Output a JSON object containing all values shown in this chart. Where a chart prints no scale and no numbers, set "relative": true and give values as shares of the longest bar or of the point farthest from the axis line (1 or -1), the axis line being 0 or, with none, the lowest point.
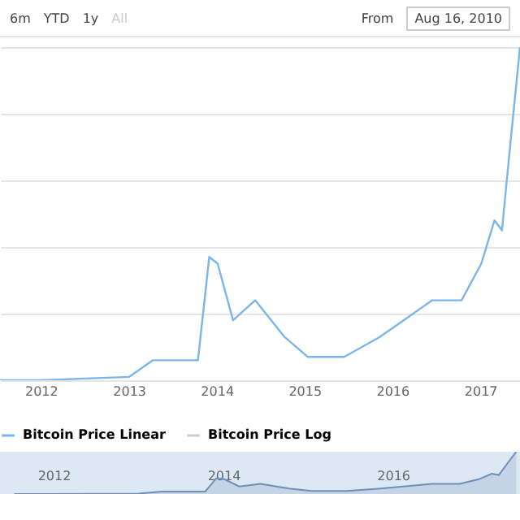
{
  "chart_data": [
    {
      "type": "line",
      "relative": true,
      "grid": "y",
      "legend": "bottom",
      "annotations": [
        "6m",
        "YTD",
        "1y",
        "All",
        "From",
        "Aug 16, 2010"
      ],
      "x": [
        "2011-07-15",
        "2012-01-01",
        "2013-01-01",
        "2013-04-10",
        "2013-10-15",
        "2013-12-01",
        "2014-01-05",
        "2014-03-10",
        "2014-06-10",
        "2014-10-10",
        "2015-01-15",
        "2015-06-15",
        "2015-11-10",
        "2016-06-15",
        "2016-10-15",
        "2017-01-05",
        "2017-03-01",
        "2017-04-01",
        "2017-05-10",
        "2017-06-15"
      ],
      "xlim": [
        "2011-07-15",
        "2017-06-15"
      ],
      "xticks": [
        {
          "value": "2012-01-01",
          "label": "2012"
        },
        {
          "value": "2013-01-01",
          "label": "2013"
        },
        {
          "value": "2014-01-01",
          "label": "2014"
        },
        {
          "value": "2015-01-01",
          "label": "2015"
        },
        {
          "value": "2016-01-01",
          "label": "2016"
        },
        {
          "value": "2017-01-01",
          "label": "2017"
        }
      ],
      "series": [
        {
          "name": "Bitcoin Price Linear",
          "color": "#7cb5ec",
          "values": [
            0,
            0,
            0.01,
            0.06,
            0.06,
            0.37,
            0.35,
            0.18,
            0.24,
            0.13,
            0.07,
            0.07,
            0.13,
            0.24,
            0.24,
            0.35,
            0.48,
            0.45,
            0.74,
            1
          ]
        },
        {
          "name": "Bitcoin Price Log",
          "color": "#cccccc",
          "values": [
            null,
            null,
            null,
            null,
            null,
            null,
            null,
            null,
            null,
            null,
            null,
            null,
            null,
            null,
            null,
            null,
            null,
            null,
            null,
            null
          ]
        }
      ]
    },
    {
      "type": "area",
      "relative": true,
      "tick_labels": "x",
      "x": [
        "2011-07-15",
        "2012-01-01",
        "2013-01-01",
        "2013-04-10",
        "2013-10-15",
        "2013-12-01",
        "2014-01-05",
        "2014-03-10",
        "2014-06-10",
        "2014-10-10",
        "2015-01-15",
        "2015-06-15",
        "2015-11-10",
        "2016-06-15",
        "2016-10-15",
        "2017-01-05",
        "2017-03-01",
        "2017-04-01",
        "2017-05-10",
        "2017-06-15"
      ],
      "xlim": [
        "2011-05-15",
        "2017-07-01"
      ],
      "xticks": [
        {
          "value": "2012-01-01",
          "label": "2012"
        },
        {
          "value": "2014-01-01",
          "label": "2014"
        },
        {
          "value": "2016-01-01",
          "label": "2016"
        }
      ],
      "series": [
        {
          "color": "#6f8fb5",
          "values": [
            0,
            0,
            0.01,
            0.06,
            0.06,
            0.37,
            0.35,
            0.18,
            0.24,
            0.13,
            0.07,
            0.07,
            0.13,
            0.24,
            0.24,
            0.35,
            0.48,
            0.45,
            0.74,
            1
          ]
        }
      ]
    }
  ]
}
